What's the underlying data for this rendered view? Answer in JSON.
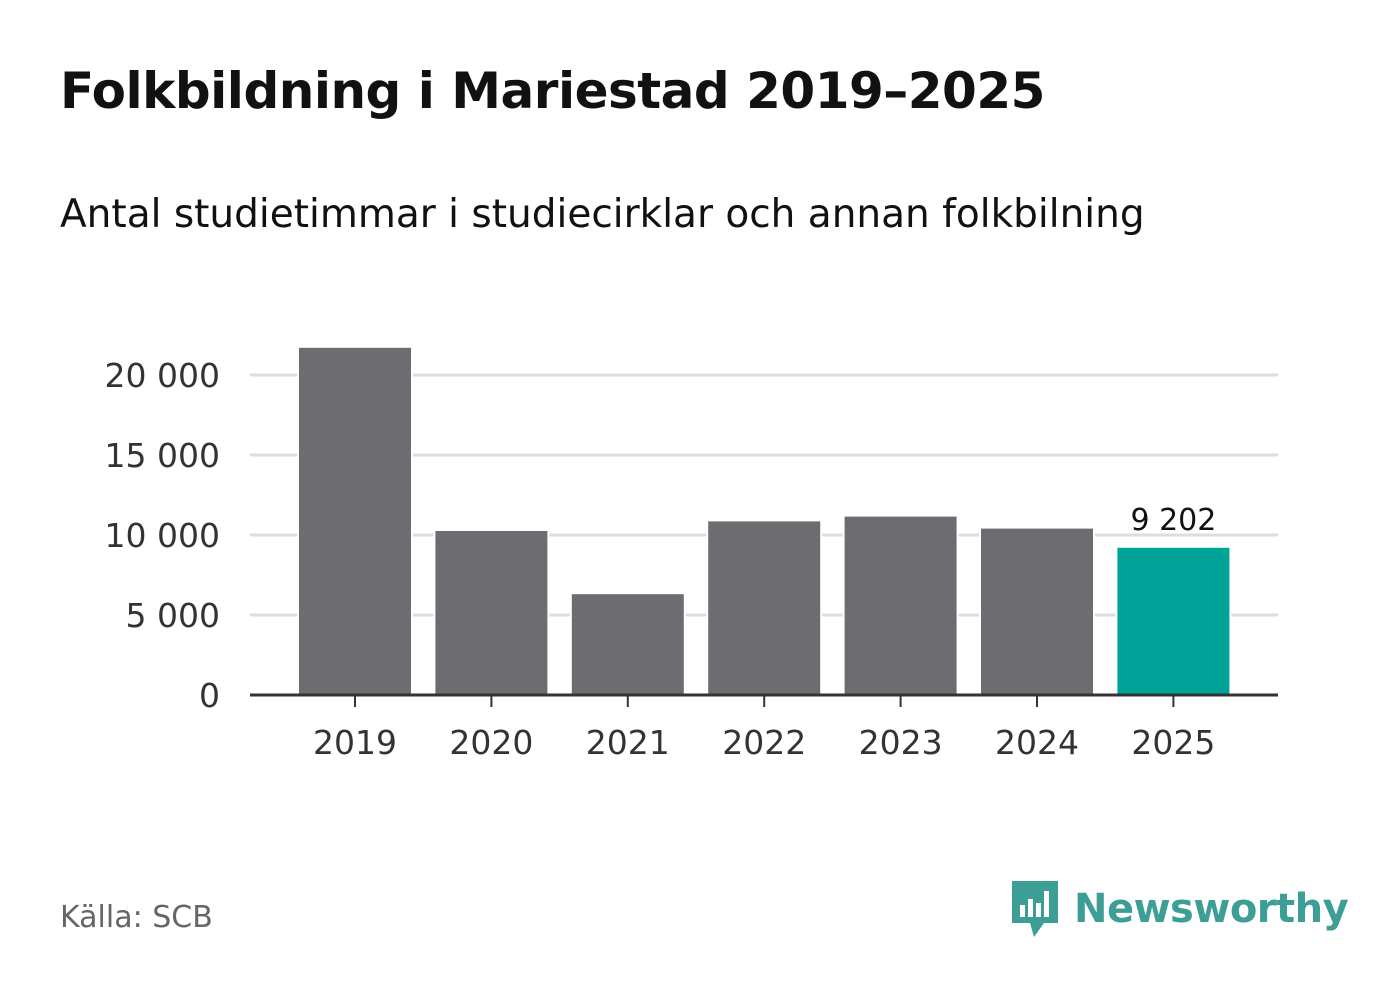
{
  "header": {
    "title": "Folkbildning i Mariestad 2019–2025",
    "subtitle": "Antal studietimmar i studiecirklar och annan folkbilning"
  },
  "footer": {
    "source": "Källa: SCB",
    "brand": "Newsworthy"
  },
  "colors": {
    "bar": "#6d6c71",
    "highlight": "#00a398",
    "grid": "#dddddd",
    "axis": "#333333",
    "text": "#333333",
    "brand": "#3d9e96"
  },
  "chart_data": {
    "type": "bar",
    "title": "Folkbildning i Mariestad 2019–2025",
    "subtitle": "Antal studietimmar i studiecirklar och annan folkbilning",
    "xlabel": "",
    "ylabel": "",
    "categories": [
      "2019",
      "2020",
      "2021",
      "2022",
      "2023",
      "2024",
      "2025"
    ],
    "values": [
      21700,
      10250,
      6300,
      10850,
      11150,
      10400,
      9202
    ],
    "highlight_index": 6,
    "data_labels": [
      {
        "index": 6,
        "text": "9 202"
      }
    ],
    "yticks": [
      0,
      5000,
      10000,
      15000,
      20000
    ],
    "ytick_labels": [
      "0",
      "5 000",
      "10 000",
      "15 000",
      "20 000"
    ],
    "ylim": [
      0,
      21700
    ],
    "grid": true
  }
}
